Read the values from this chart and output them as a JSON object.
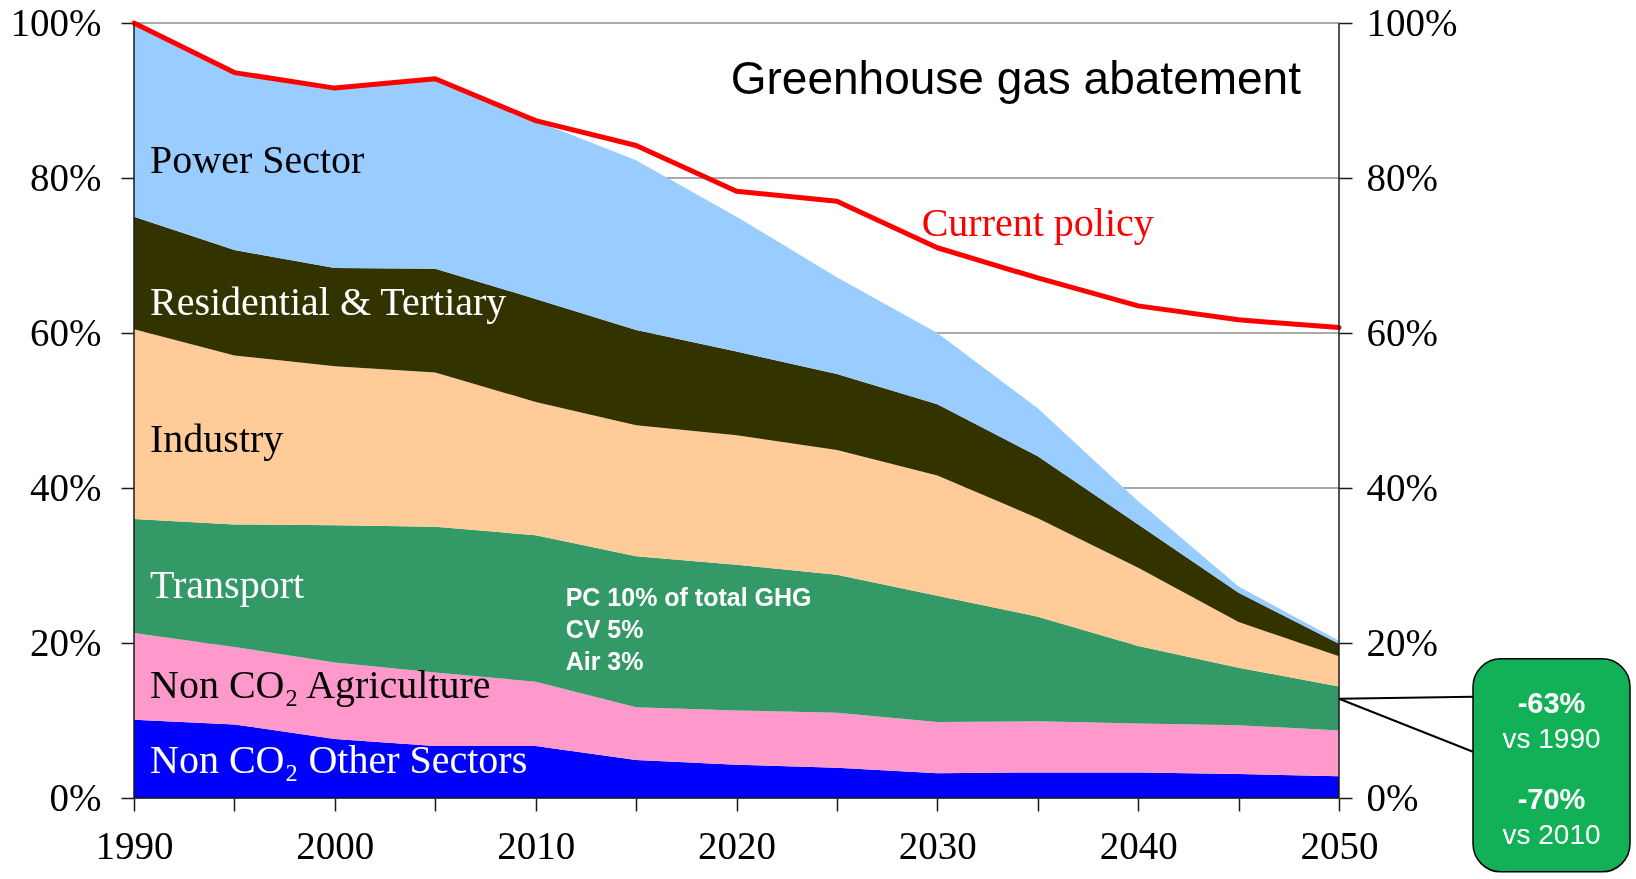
{
  "chart_data": {
    "type": "area",
    "title": "Greenhouse gas abatement",
    "stacked": true,
    "x": [
      1990,
      1995,
      2000,
      2005,
      2010,
      2015,
      2020,
      2025,
      2030,
      2035,
      2040,
      2045,
      2050
    ],
    "series": [
      {
        "name": "Non CO₂ Other Sectors",
        "color": "#0000ff",
        "values": [
          10.1,
          9.5,
          7.6,
          6.7,
          6.7,
          4.9,
          4.3,
          3.9,
          3.2,
          3.3,
          3.3,
          3.1,
          2.8
        ]
      },
      {
        "name": "Non CO₂ Agriculture",
        "color": "#ff99cc",
        "values": [
          11.2,
          10.0,
          9.9,
          9.5,
          8.3,
          6.8,
          7.0,
          7.1,
          6.6,
          6.6,
          6.3,
          6.3,
          5.9
        ]
      },
      {
        "name": "Transport",
        "color": "#339966",
        "values": [
          14.7,
          15.8,
          17.7,
          18.8,
          18.9,
          19.5,
          18.8,
          17.8,
          16.3,
          13.5,
          10.0,
          7.4,
          5.7
        ]
      },
      {
        "name": "Industry",
        "color": "#ffcc99",
        "values": [
          24.5,
          21.8,
          20.5,
          19.9,
          17.2,
          16.9,
          16.7,
          16.1,
          15.5,
          12.7,
          10.1,
          5.9,
          3.9
        ]
      },
      {
        "name": "Residential & Tertiary",
        "color": "#333300",
        "values": [
          14.5,
          13.6,
          12.7,
          13.4,
          13.3,
          12.3,
          10.8,
          9.8,
          9.2,
          8.0,
          5.6,
          3.8,
          1.6
        ]
      },
      {
        "name": "Power Sector",
        "color": "#99ccff",
        "values": [
          25.0,
          22.9,
          23.2,
          24.5,
          23.0,
          21.9,
          17.4,
          12.5,
          9.2,
          6.2,
          3.0,
          0.8,
          0.4
        ]
      },
      {
        "name": "Current policy",
        "type": "line",
        "color": "#ff0000",
        "values": [
          100,
          93.6,
          91.6,
          92.8,
          87.4,
          84.2,
          78.3,
          77.0,
          71.0,
          67.1,
          63.5,
          61.7,
          60.7
        ]
      }
    ],
    "xlim": [
      1990,
      2050
    ],
    "xticks": [
      1990,
      {
        "value": 1995,
        "label": null
      },
      2000,
      {
        "value": 2005,
        "label": null
      },
      2010,
      {
        "value": 2015,
        "label": null
      },
      2020,
      {
        "value": 2025,
        "label": null
      },
      2030,
      {
        "value": 2035,
        "label": null
      },
      2040,
      {
        "value": 2045,
        "label": null
      },
      2050
    ],
    "ylim": [
      0,
      100
    ],
    "yticks": [
      {
        "value": 0,
        "label": "0%"
      },
      {
        "value": 20,
        "label": "20%"
      },
      {
        "value": 40,
        "label": "40%"
      },
      {
        "value": 60,
        "label": "60%"
      },
      {
        "value": 80,
        "label": "80%"
      },
      {
        "value": 100,
        "label": "100%"
      }
    ],
    "y2lim": [
      0,
      100
    ],
    "y2ticks": [
      {
        "value": 0,
        "label": "0%"
      },
      {
        "value": 20,
        "label": "20%"
      },
      {
        "value": 40,
        "label": "40%"
      },
      {
        "value": 60,
        "label": "60%"
      },
      {
        "value": 80,
        "label": "80%"
      },
      {
        "value": 100,
        "label": "100%"
      }
    ],
    "grid": "y",
    "annotations": [
      "PC 10%  of total GHG\nCV   5%\nAir   3%",
      {
        "text": "-63%\nvs 1990\n-70%\nvs 2010",
        "x": 2050,
        "y": 12.8
      }
    ]
  }
}
